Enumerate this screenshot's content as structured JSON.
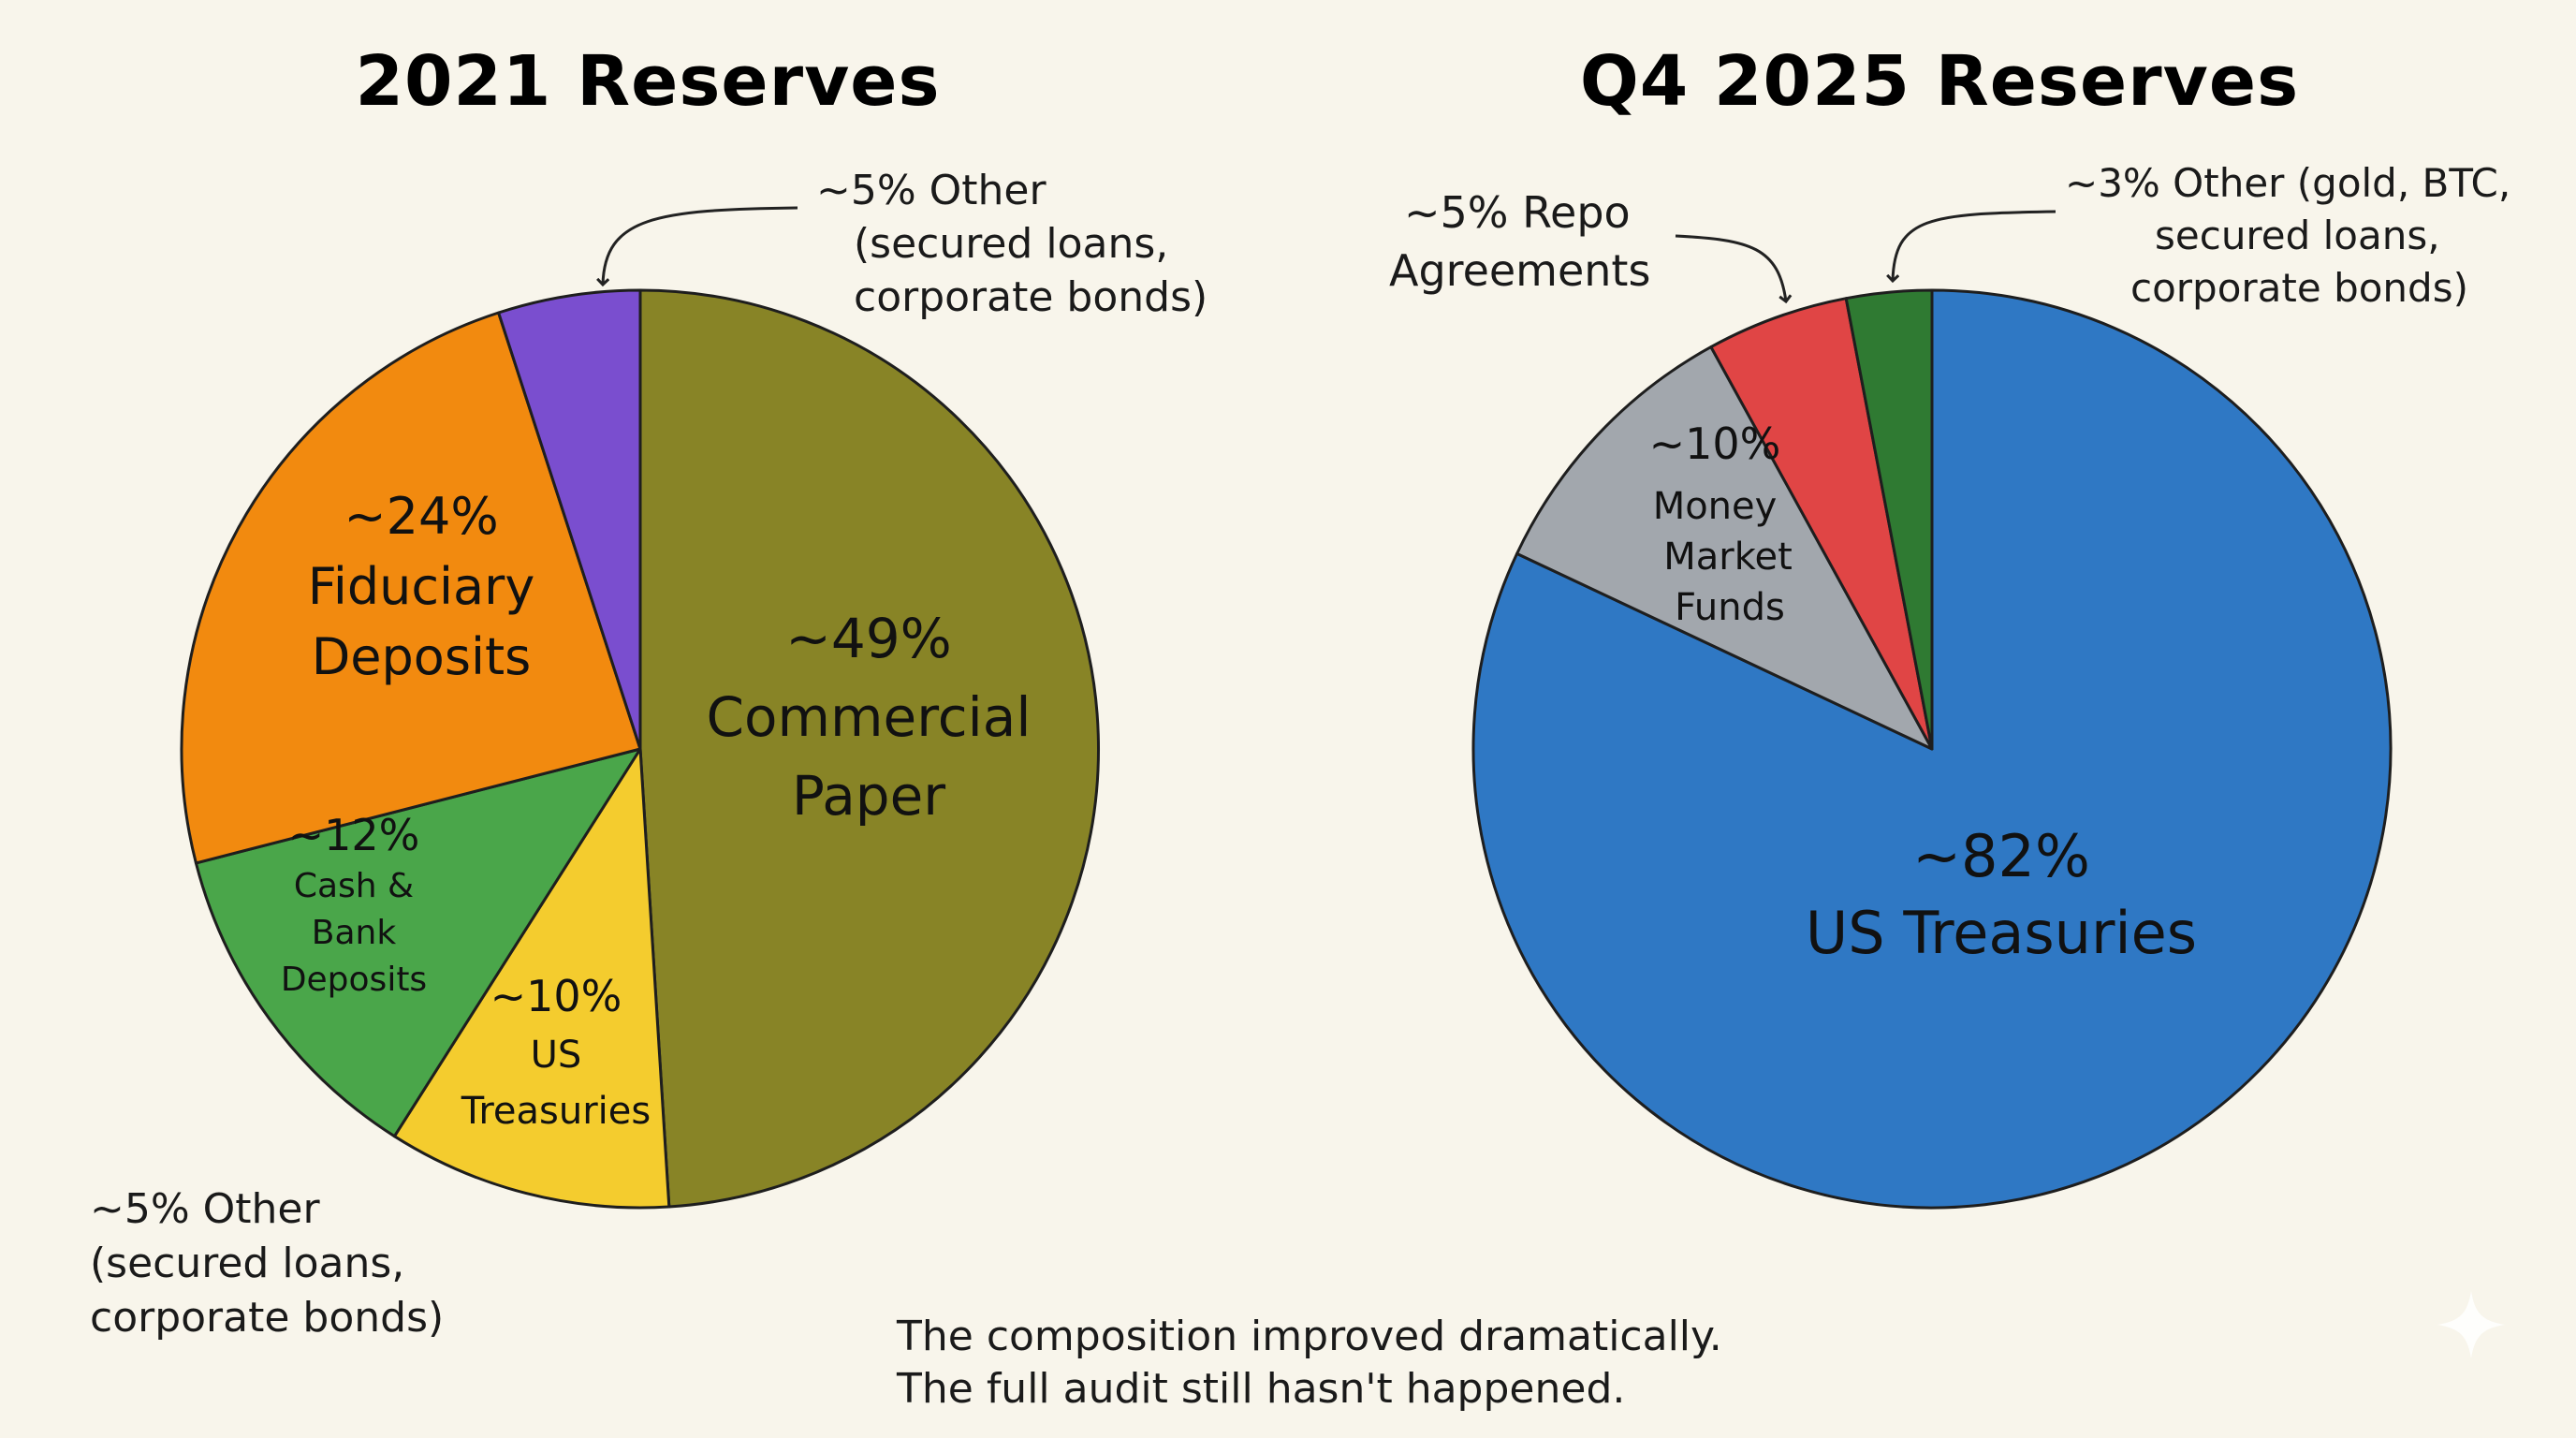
{
  "chart_data": [
    {
      "type": "pie",
      "title": "2021 Reserves",
      "slices": [
        {
          "key": "commercial_paper",
          "value": 49,
          "label_lines": [
            "~49%",
            "Commercial",
            "Paper"
          ],
          "color": "#888426"
        },
        {
          "key": "us_treasuries",
          "value": 10,
          "label_lines": [
            "~10%",
            "US",
            "Treasuries"
          ],
          "color": "#f4cc2e"
        },
        {
          "key": "cash_bank",
          "value": 12,
          "label_lines": [
            "~12%",
            "Cash &",
            "Bank",
            "Deposits"
          ],
          "color": "#4aa64a"
        },
        {
          "key": "fiduciary",
          "value": 24,
          "label_lines": [
            "~24%",
            "Fiduciary",
            "Deposits"
          ],
          "color": "#f28a0f"
        },
        {
          "key": "other",
          "value": 5,
          "label_lines": [],
          "color": "#7a4ecf"
        }
      ],
      "annotations": [
        {
          "lines": [
            "~5% Other",
            "(secured loans,",
            "corporate bonds)"
          ]
        },
        {
          "lines": [
            "~5% Other",
            "(secured loans,",
            "corporate bonds)"
          ]
        }
      ]
    },
    {
      "type": "pie",
      "title": "Q4 2025 Reserves",
      "slices": [
        {
          "key": "us_treasuries",
          "value": 82,
          "label_lines": [
            "~82%",
            "US Treasuries"
          ],
          "color": "#2f78c4"
        },
        {
          "key": "money_market",
          "value": 10,
          "label_lines": [
            "~10%",
            "Money",
            "Market",
            "Funds"
          ],
          "color": "#a2a7ad"
        },
        {
          "key": "repo",
          "value": 5,
          "label_lines": [],
          "color": "#e04545"
        },
        {
          "key": "other",
          "value": 3,
          "label_lines": [],
          "color": "#2f7a32"
        }
      ],
      "annotations": [
        {
          "lines": [
            "~5% Repo",
            "Agreements"
          ]
        },
        {
          "lines": [
            "~3% Other (gold, BTC,",
            "secured loans,",
            "corporate bonds)"
          ]
        }
      ]
    }
  ],
  "footer": {
    "line1": "The composition improved dramatically.",
    "line2": "The full audit still hasn't happened."
  }
}
